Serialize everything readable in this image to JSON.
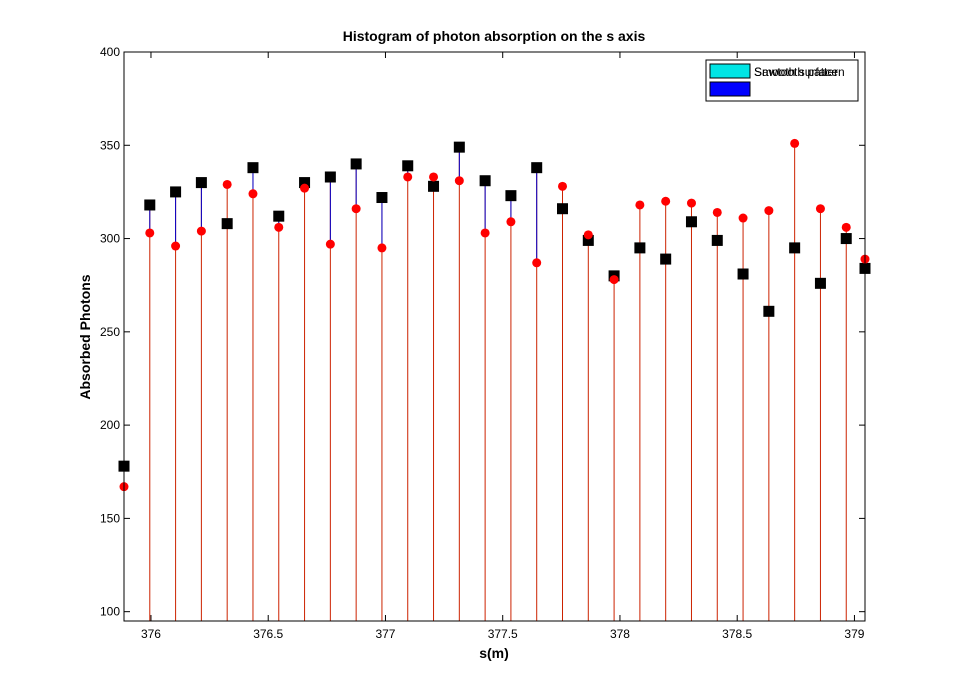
{
  "chart_data": {
    "type": "scatter",
    "title": "Histogram of photon absorption on the s axis",
    "xlabel": "s(m)",
    "ylabel": "Absorbed Photons",
    "xlim": [
      375.885,
      379.045
    ],
    "ylim": [
      95,
      400
    ],
    "xticks": [
      376,
      376.5,
      377,
      377.5,
      378,
      378.5,
      379
    ],
    "xtick_labels": [
      "376",
      "376.5",
      "377",
      "377.5",
      "378",
      "378.5",
      "379"
    ],
    "yticks": [
      100,
      150,
      200,
      250,
      300,
      350,
      400
    ],
    "ytick_labels": [
      "100",
      "150",
      "200",
      "250",
      "300",
      "350",
      "400"
    ],
    "grid": false,
    "legend_position": "top-right",
    "legend_text": "Smooth surface",
    "legend_text_overlap": "Sawtooth pattern",
    "colors": {
      "smooth_marker": "#00e5e5",
      "sawtooth_marker": "#0000ff",
      "red_series": "#ff0000",
      "red_stem": "#cc2200",
      "black_series": "#000000",
      "blue_stem": "#0000cc"
    },
    "x": [
      375.885,
      375.995,
      376.105,
      376.215,
      376.325,
      376.435,
      376.545,
      376.655,
      376.765,
      376.875,
      376.985,
      377.095,
      377.205,
      377.315,
      377.425,
      377.535,
      377.645,
      377.755,
      377.865,
      377.975,
      378.085,
      378.195,
      378.305,
      378.415,
      378.525,
      378.635,
      378.745,
      378.855,
      378.965,
      379.045
    ],
    "series": [
      {
        "values": [
          178,
          318,
          325,
          330,
          308,
          338,
          312,
          330,
          333,
          340,
          322,
          339,
          328,
          349,
          331,
          323,
          338,
          316,
          299,
          280,
          295,
          289,
          309,
          299,
          281,
          261,
          295,
          276,
          300,
          284
        ]
      },
      {
        "values": [
          167,
          303,
          296,
          304,
          329,
          324,
          306,
          327,
          297,
          316,
          295,
          333,
          333,
          331,
          303,
          309,
          287,
          328,
          302,
          278,
          318,
          320,
          319,
          314,
          311,
          315,
          351,
          316,
          306,
          289
        ]
      }
    ]
  }
}
